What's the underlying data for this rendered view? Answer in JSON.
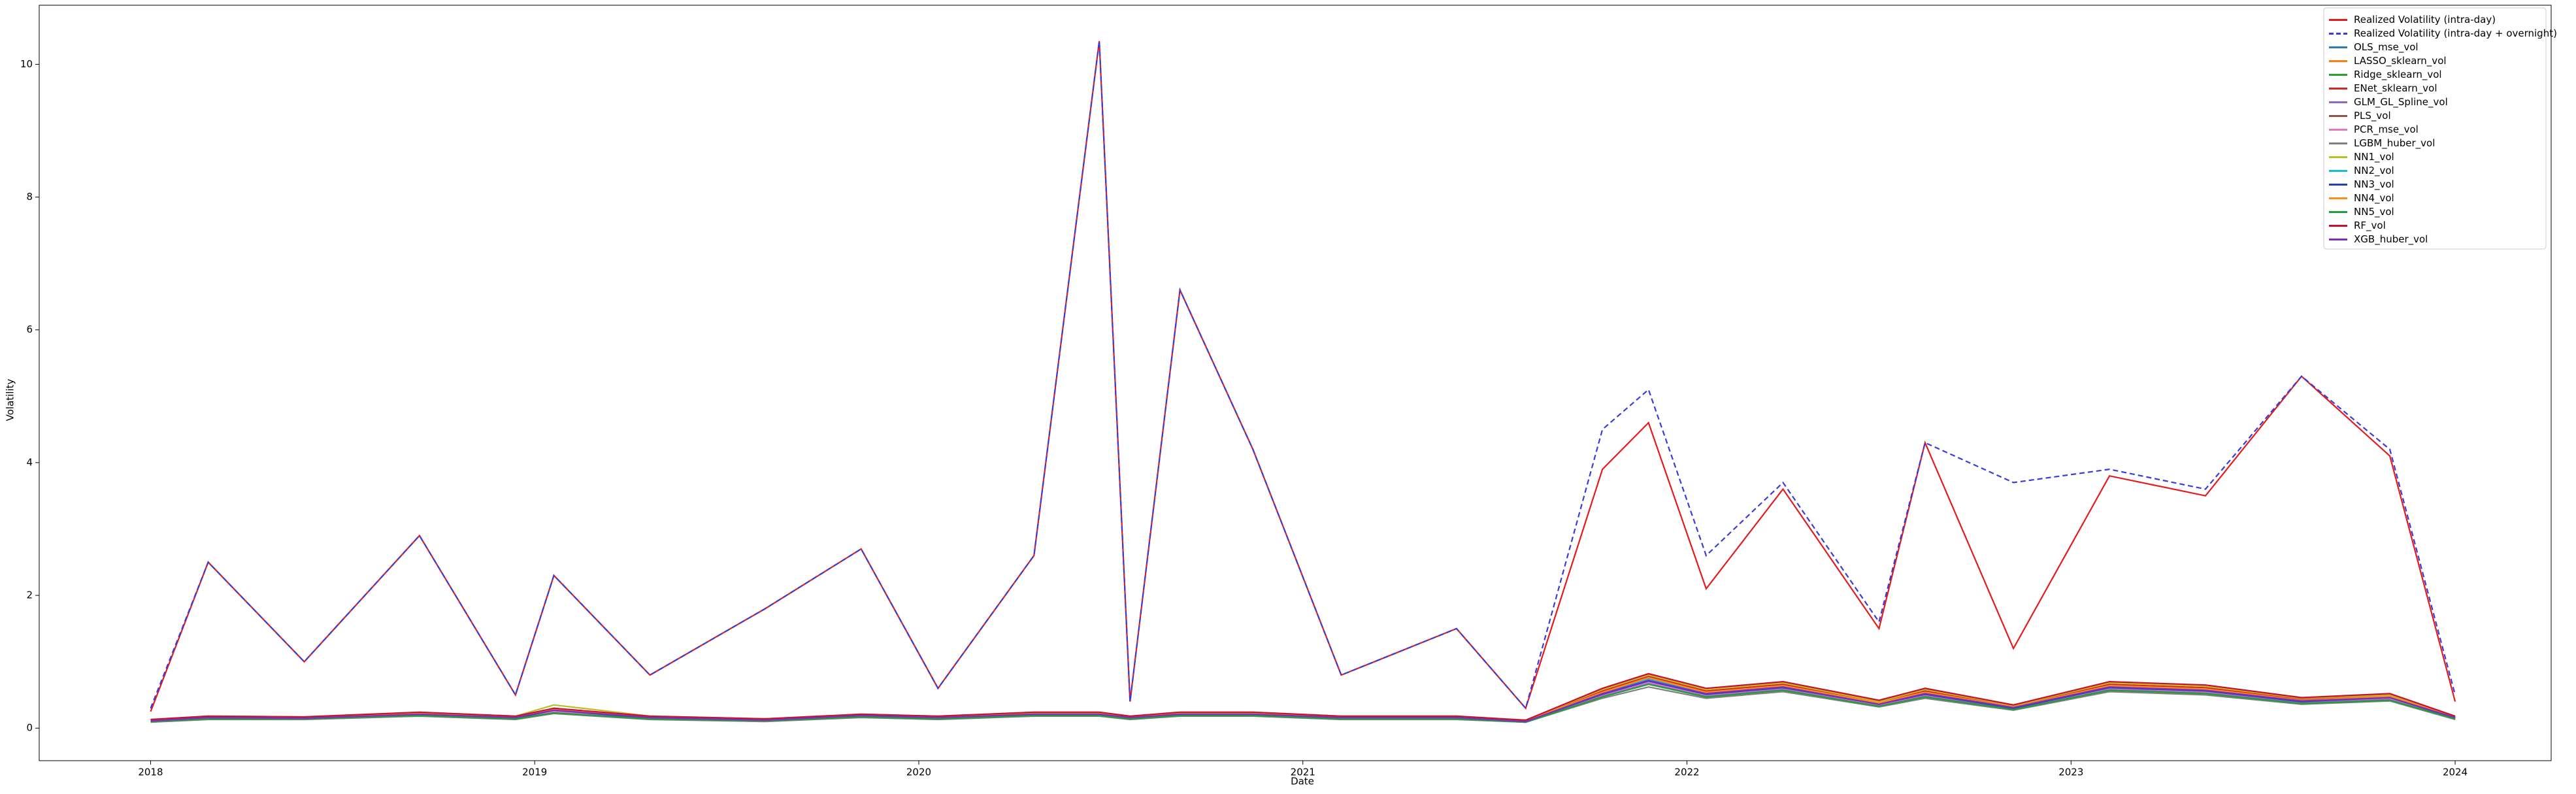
{
  "chart_data": {
    "type": "line",
    "x_label": "Date",
    "y_label": "Volatility",
    "x": [
      2018.0,
      2018.15,
      2018.4,
      2018.7,
      2018.95,
      2019.05,
      2019.3,
      2019.6,
      2019.85,
      2020.05,
      2020.3,
      2020.47,
      2020.55,
      2020.68,
      2020.87,
      2021.1,
      2021.4,
      2021.58,
      2021.78,
      2021.9,
      2022.05,
      2022.25,
      2022.5,
      2022.62,
      2022.85,
      2023.1,
      2023.35,
      2023.6,
      2023.83,
      2024.0
    ],
    "xlim": [
      2017.71,
      2024.25
    ],
    "xticks": [
      2018,
      2019,
      2020,
      2021,
      2022,
      2023,
      2024
    ],
    "ylim": [
      -0.49,
      10.89
    ],
    "yticks": [
      0,
      2,
      4,
      6,
      8,
      10
    ],
    "grid": false,
    "legend": "upper right",
    "series": [
      {
        "name": "Realized Volatility (intra-day)",
        "color": "#e41a1c",
        "linestyle": "solid",
        "values": [
          0.25,
          2.5,
          1.0,
          2.9,
          0.5,
          2.3,
          0.8,
          1.8,
          2.7,
          0.6,
          2.6,
          10.35,
          0.4,
          6.6,
          4.2,
          0.8,
          1.5,
          0.3,
          3.9,
          4.6,
          2.1,
          3.6,
          1.5,
          4.3,
          1.2,
          3.8,
          3.5,
          5.3,
          4.1,
          0.4
        ]
      },
      {
        "name": "Realized Volatility (intra-day + overnight)",
        "color": "#3b3bdb",
        "linestyle": "dashed",
        "values": [
          0.3,
          2.5,
          1.0,
          2.9,
          0.5,
          2.3,
          0.8,
          1.8,
          2.7,
          0.6,
          2.6,
          10.35,
          0.4,
          6.6,
          4.2,
          0.8,
          1.5,
          0.3,
          4.5,
          5.1,
          2.6,
          3.7,
          1.6,
          4.3,
          3.7,
          3.9,
          3.6,
          5.3,
          4.2,
          0.5
        ]
      },
      {
        "name": "OLS_mse_vol",
        "color": "#2b7bba",
        "linestyle": "solid",
        "values": [
          0.1,
          0.15,
          0.15,
          0.2,
          0.15,
          0.25,
          0.15,
          0.12,
          0.18,
          0.15,
          0.2,
          0.2,
          0.15,
          0.2,
          0.2,
          0.15,
          0.15,
          0.1,
          0.5,
          0.7,
          0.5,
          0.6,
          0.35,
          0.5,
          0.3,
          0.6,
          0.55,
          0.4,
          0.45,
          0.15
        ]
      },
      {
        "name": "LASSO_sklearn_vol",
        "color": "#ff7f0e",
        "linestyle": "solid",
        "values": [
          0.12,
          0.16,
          0.16,
          0.22,
          0.16,
          0.3,
          0.16,
          0.13,
          0.2,
          0.16,
          0.22,
          0.22,
          0.16,
          0.22,
          0.22,
          0.16,
          0.16,
          0.11,
          0.55,
          0.75,
          0.55,
          0.65,
          0.38,
          0.55,
          0.32,
          0.65,
          0.6,
          0.42,
          0.48,
          0.16
        ]
      },
      {
        "name": "Ridge_sklearn_vol",
        "color": "#2ca02c",
        "linestyle": "solid",
        "values": [
          0.11,
          0.15,
          0.14,
          0.21,
          0.15,
          0.28,
          0.15,
          0.12,
          0.19,
          0.15,
          0.21,
          0.21,
          0.15,
          0.21,
          0.21,
          0.15,
          0.15,
          0.1,
          0.52,
          0.72,
          0.52,
          0.62,
          0.36,
          0.52,
          0.31,
          0.62,
          0.57,
          0.41,
          0.46,
          0.15
        ]
      },
      {
        "name": "ENet_sklearn_vol",
        "color": "#d62728",
        "linestyle": "solid",
        "values": [
          0.12,
          0.17,
          0.16,
          0.23,
          0.17,
          0.3,
          0.17,
          0.14,
          0.2,
          0.17,
          0.23,
          0.23,
          0.17,
          0.23,
          0.23,
          0.17,
          0.17,
          0.12,
          0.56,
          0.78,
          0.56,
          0.66,
          0.39,
          0.56,
          0.33,
          0.66,
          0.61,
          0.43,
          0.49,
          0.17
        ]
      },
      {
        "name": "GLM_GL_Spline_vol",
        "color": "#9467bd",
        "linestyle": "solid",
        "values": [
          0.1,
          0.14,
          0.14,
          0.19,
          0.14,
          0.24,
          0.14,
          0.11,
          0.17,
          0.14,
          0.19,
          0.19,
          0.14,
          0.19,
          0.19,
          0.14,
          0.14,
          0.09,
          0.48,
          0.68,
          0.48,
          0.58,
          0.33,
          0.48,
          0.29,
          0.58,
          0.53,
          0.38,
          0.43,
          0.14
        ]
      },
      {
        "name": "PLS_vol",
        "color": "#8c564b",
        "linestyle": "solid",
        "values": [
          0.11,
          0.15,
          0.15,
          0.2,
          0.15,
          0.26,
          0.15,
          0.12,
          0.18,
          0.15,
          0.2,
          0.2,
          0.15,
          0.2,
          0.2,
          0.15,
          0.15,
          0.1,
          0.5,
          0.7,
          0.5,
          0.6,
          0.35,
          0.5,
          0.3,
          0.6,
          0.55,
          0.4,
          0.45,
          0.15
        ]
      },
      {
        "name": "PCR_mse_vol",
        "color": "#e377c2",
        "linestyle": "solid",
        "values": [
          0.1,
          0.15,
          0.15,
          0.2,
          0.15,
          0.25,
          0.15,
          0.12,
          0.18,
          0.15,
          0.2,
          0.2,
          0.15,
          0.2,
          0.2,
          0.15,
          0.15,
          0.1,
          0.5,
          0.69,
          0.5,
          0.6,
          0.35,
          0.5,
          0.3,
          0.6,
          0.55,
          0.4,
          0.45,
          0.15
        ]
      },
      {
        "name": "LGBM_huber_vol",
        "color": "#7f7f7f",
        "linestyle": "solid",
        "values": [
          0.09,
          0.13,
          0.13,
          0.18,
          0.13,
          0.22,
          0.13,
          0.1,
          0.16,
          0.13,
          0.18,
          0.18,
          0.13,
          0.18,
          0.18,
          0.13,
          0.13,
          0.09,
          0.45,
          0.62,
          0.45,
          0.55,
          0.32,
          0.45,
          0.27,
          0.55,
          0.5,
          0.36,
          0.41,
          0.13
        ]
      },
      {
        "name": "NN1_vol",
        "color": "#bcbd22",
        "linestyle": "solid",
        "values": [
          0.13,
          0.18,
          0.17,
          0.24,
          0.18,
          0.35,
          0.18,
          0.14,
          0.21,
          0.18,
          0.24,
          0.24,
          0.18,
          0.24,
          0.24,
          0.18,
          0.18,
          0.12,
          0.58,
          0.8,
          0.58,
          0.68,
          0.4,
          0.58,
          0.34,
          0.68,
          0.63,
          0.45,
          0.5,
          0.18
        ]
      },
      {
        "name": "NN2_vol",
        "color": "#17becf",
        "linestyle": "solid",
        "values": [
          0.12,
          0.16,
          0.16,
          0.22,
          0.16,
          0.28,
          0.16,
          0.13,
          0.19,
          0.16,
          0.22,
          0.22,
          0.16,
          0.22,
          0.22,
          0.16,
          0.16,
          0.11,
          0.53,
          0.74,
          0.53,
          0.63,
          0.37,
          0.53,
          0.31,
          0.63,
          0.58,
          0.42,
          0.47,
          0.16
        ]
      },
      {
        "name": "NN3_vol",
        "color": "#1f3fbf",
        "linestyle": "solid",
        "values": [
          0.11,
          0.15,
          0.15,
          0.21,
          0.15,
          0.27,
          0.15,
          0.12,
          0.19,
          0.15,
          0.21,
          0.21,
          0.15,
          0.21,
          0.21,
          0.15,
          0.15,
          0.1,
          0.51,
          0.71,
          0.51,
          0.61,
          0.36,
          0.51,
          0.3,
          0.61,
          0.56,
          0.4,
          0.46,
          0.15
        ]
      },
      {
        "name": "NN4_vol",
        "color": "#ff8c1a",
        "linestyle": "solid",
        "values": [
          0.12,
          0.17,
          0.16,
          0.22,
          0.17,
          0.29,
          0.17,
          0.13,
          0.2,
          0.17,
          0.22,
          0.22,
          0.17,
          0.22,
          0.22,
          0.17,
          0.17,
          0.11,
          0.54,
          0.76,
          0.54,
          0.64,
          0.38,
          0.54,
          0.32,
          0.64,
          0.59,
          0.42,
          0.48,
          0.17
        ]
      },
      {
        "name": "NN5_vol",
        "color": "#1f9e3a",
        "linestyle": "solid",
        "values": [
          0.1,
          0.14,
          0.14,
          0.19,
          0.14,
          0.23,
          0.14,
          0.11,
          0.17,
          0.14,
          0.19,
          0.19,
          0.14,
          0.19,
          0.19,
          0.14,
          0.14,
          0.09,
          0.47,
          0.66,
          0.47,
          0.57,
          0.33,
          0.47,
          0.28,
          0.57,
          0.52,
          0.37,
          0.42,
          0.14
        ]
      },
      {
        "name": "RF_vol",
        "color": "#c8102e",
        "linestyle": "solid",
        "values": [
          0.13,
          0.18,
          0.17,
          0.24,
          0.18,
          0.3,
          0.18,
          0.14,
          0.21,
          0.18,
          0.24,
          0.24,
          0.18,
          0.24,
          0.24,
          0.18,
          0.18,
          0.12,
          0.6,
          0.82,
          0.6,
          0.7,
          0.42,
          0.6,
          0.35,
          0.7,
          0.65,
          0.46,
          0.52,
          0.18
        ]
      },
      {
        "name": "XGB_huber_vol",
        "color": "#7b2fbf",
        "linestyle": "solid",
        "values": [
          0.11,
          0.16,
          0.15,
          0.21,
          0.16,
          0.27,
          0.16,
          0.12,
          0.19,
          0.16,
          0.21,
          0.21,
          0.16,
          0.21,
          0.21,
          0.16,
          0.16,
          0.1,
          0.52,
          0.72,
          0.52,
          0.62,
          0.36,
          0.52,
          0.31,
          0.62,
          0.57,
          0.41,
          0.46,
          0.16
        ]
      }
    ]
  }
}
